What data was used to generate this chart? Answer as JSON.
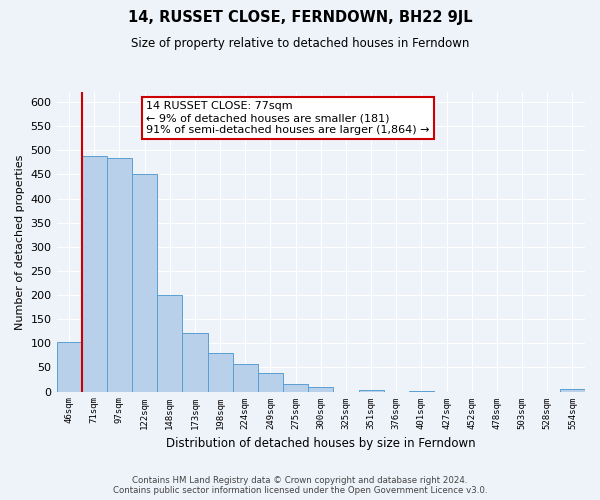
{
  "title": "14, RUSSET CLOSE, FERNDOWN, BH22 9JL",
  "subtitle": "Size of property relative to detached houses in Ferndown",
  "xlabel": "Distribution of detached houses by size in Ferndown",
  "ylabel": "Number of detached properties",
  "bin_labels": [
    "46sqm",
    "71sqm",
    "97sqm",
    "122sqm",
    "148sqm",
    "173sqm",
    "198sqm",
    "224sqm",
    "249sqm",
    "275sqm",
    "300sqm",
    "325sqm",
    "351sqm",
    "376sqm",
    "401sqm",
    "427sqm",
    "452sqm",
    "478sqm",
    "503sqm",
    "528sqm",
    "554sqm"
  ],
  "bar_heights": [
    103,
    488,
    485,
    450,
    200,
    122,
    80,
    58,
    38,
    15,
    10,
    0,
    3,
    0,
    2,
    0,
    0,
    0,
    0,
    0,
    5
  ],
  "bar_color": "#b8d0ea",
  "bar_edge_color": "#5a9fd4",
  "vline_color": "#cc0000",
  "annotation_text": "14 RUSSET CLOSE: 77sqm\n← 9% of detached houses are smaller (181)\n91% of semi-detached houses are larger (1,864) →",
  "annotation_box_color": "#cc0000",
  "ylim": [
    0,
    620
  ],
  "yticks": [
    0,
    50,
    100,
    150,
    200,
    250,
    300,
    350,
    400,
    450,
    500,
    550,
    600
  ],
  "footer_line1": "Contains HM Land Registry data © Crown copyright and database right 2024.",
  "footer_line2": "Contains public sector information licensed under the Open Government Licence v3.0.",
  "background_color": "#eef2f9",
  "grid_color": "#ffffff"
}
